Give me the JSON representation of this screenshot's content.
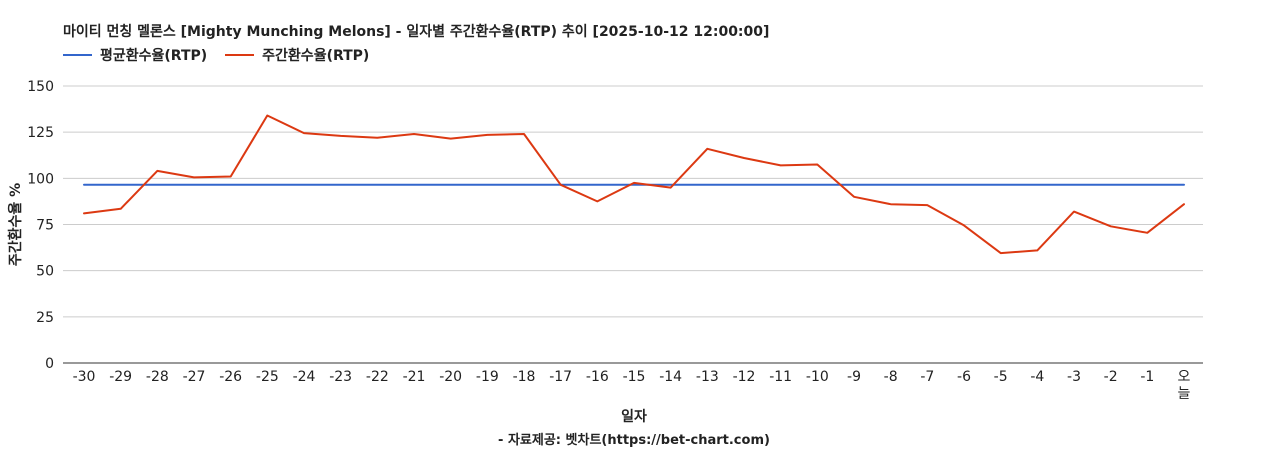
{
  "title": "마이티 먼칭 멜론스 [Mighty Munching Melons] - 일자별 주간환수율(RTP) 추이 [2025-10-12 12:00:00]",
  "source": "- 자료제공: 벳차트(https://bet-chart.com)",
  "chart_data": {
    "type": "line",
    "xlabel": "일자",
    "ylabel": "주간환수율 %",
    "ylim": [
      0,
      150
    ],
    "yticks": [
      0,
      25,
      50,
      75,
      100,
      125,
      150
    ],
    "grid": true,
    "legend_position": "top-left",
    "categories": [
      "-30",
      "-29",
      "-28",
      "-27",
      "-26",
      "-25",
      "-24",
      "-23",
      "-22",
      "-21",
      "-20",
      "-19",
      "-18",
      "-17",
      "-16",
      "-15",
      "-14",
      "-13",
      "-12",
      "-11",
      "-10",
      "-9",
      "-8",
      "-7",
      "-6",
      "-5",
      "-4",
      "-3",
      "-2",
      "-1",
      "오늘"
    ],
    "series": [
      {
        "name": "평균환수율(RTP)",
        "color": "#3366cc",
        "values": [
          96.5,
          96.5,
          96.5,
          96.5,
          96.5,
          96.5,
          96.5,
          96.5,
          96.5,
          96.5,
          96.5,
          96.5,
          96.5,
          96.5,
          96.5,
          96.5,
          96.5,
          96.5,
          96.5,
          96.5,
          96.5,
          96.5,
          96.5,
          96.5,
          96.5,
          96.5,
          96.5,
          96.5,
          96.5,
          96.5,
          96.5
        ]
      },
      {
        "name": "주간환수율(RTP)",
        "color": "#dc3912",
        "values": [
          81,
          83.5,
          104,
          100.5,
          101,
          134,
          124.5,
          123,
          122,
          124,
          121.5,
          123.5,
          124,
          96.5,
          87.5,
          97.5,
          95,
          116,
          111,
          107,
          107.5,
          90,
          86,
          85.5,
          74.5,
          59.5,
          61,
          82,
          74,
          70.5,
          86
        ]
      }
    ]
  }
}
